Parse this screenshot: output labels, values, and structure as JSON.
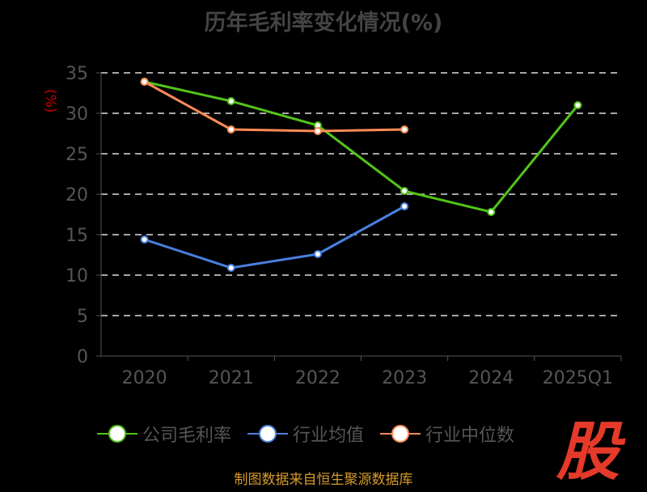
{
  "chart_data": {
    "type": "line",
    "title": "历年毛利率变化情况(%)",
    "ylabel": "(%)",
    "xlabel": "",
    "categories": [
      "2020",
      "2021",
      "2022",
      "2023",
      "2024",
      "2025Q1"
    ],
    "ylim": [
      0,
      35
    ],
    "yticks": [
      "0",
      "5",
      "10",
      "15",
      "20",
      "25",
      "30",
      "35"
    ],
    "grid": true,
    "legend_position": "bottom",
    "series": [
      {
        "name": "公司毛利率",
        "color": "#52c41a",
        "values": [
          33.9,
          31.5,
          28.5,
          20.4,
          17.8,
          31.0
        ]
      },
      {
        "name": "行业均值",
        "color": "#4a7fe0",
        "values": [
          14.4,
          10.9,
          12.6,
          18.5,
          null,
          null
        ]
      },
      {
        "name": "行业中位数",
        "color": "#ff8a55",
        "values": [
          33.9,
          28.0,
          27.8,
          28.0,
          null,
          null
        ]
      }
    ]
  },
  "source": "制图数据来自恒生聚源数据库",
  "logo": "股"
}
